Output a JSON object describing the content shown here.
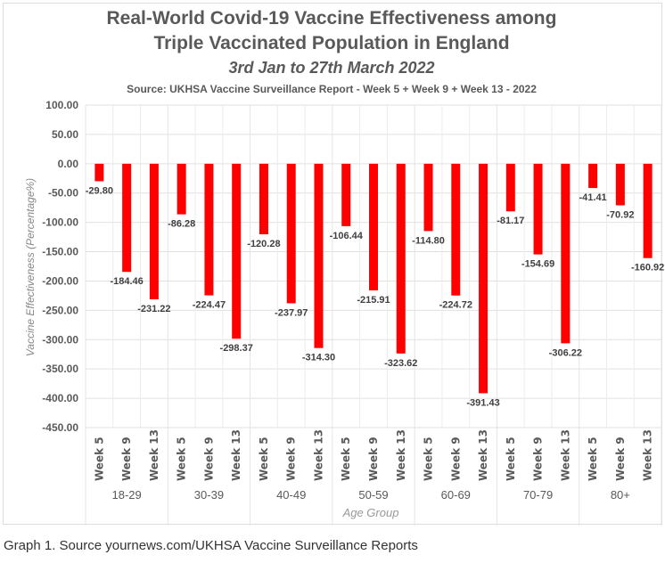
{
  "chart_data": {
    "type": "bar",
    "title": "Real-World Covid-19 Vaccine Effectiveness among",
    "title2": "Triple Vaccinated Population in England",
    "subtitle": "3rd Jan to 27th March 2022",
    "source": "Source: UKHSA Vaccine Surveillance Report - Week 5 + Week 9 + Week 13 - 2022",
    "xlabel": "Age Group",
    "ylabel": "Vaccine Effectiveness (Percentage%)",
    "ylim": [
      -450,
      100
    ],
    "yticks": [
      "100.00",
      "50.00",
      "0.00",
      "-50.00",
      "-100.00",
      "-150.00",
      "-200.00",
      "-250.00",
      "-300.00",
      "-350.00",
      "-400.00",
      "-450.00"
    ],
    "grid": true,
    "color": "#ff0000",
    "groups": [
      "18-29",
      "30-39",
      "40-49",
      "50-59",
      "60-69",
      "70-79",
      "80+"
    ],
    "weeks": [
      "Week 5",
      "Week 9",
      "Week 13"
    ],
    "values": [
      [
        -29.8,
        -184.46,
        -231.22
      ],
      [
        -86.28,
        -224.47,
        -298.37
      ],
      [
        -120.28,
        -237.97,
        -314.3
      ],
      [
        -106.44,
        -215.91,
        -323.62
      ],
      [
        -114.8,
        -224.72,
        -391.43
      ],
      [
        -81.17,
        -154.69,
        -306.22
      ],
      [
        -41.41,
        -70.92,
        -160.92
      ]
    ]
  },
  "caption": "Graph 1. Source yournews.com/UKHSA Vaccine Surveillance Reports"
}
